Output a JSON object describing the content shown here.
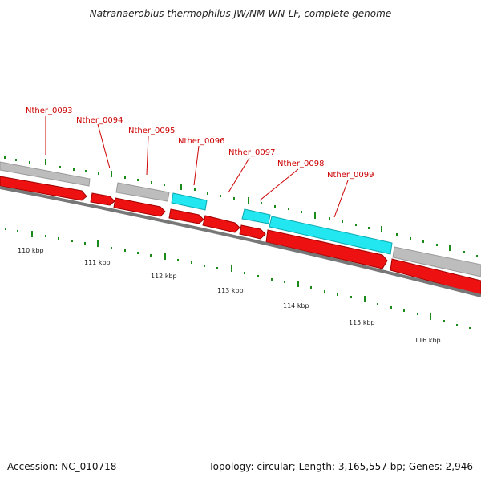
{
  "title": "Natranaerobius thermophilus JW/NM-WN-LF, complete genome",
  "accession": "Accession: NC_010718",
  "topology": "Topology: circular; Length: 3,165,557 bp; Genes: 2,946",
  "colors": {
    "gene_label": "#cc0000",
    "cds_red": "#ee1111",
    "cds_red_dark": "#a00000",
    "cyan": "#22e6f0",
    "gray_bar": "#bdbdbd",
    "backbone": "#777777",
    "tick_green": "#1a8a1a"
  },
  "gene_labels": [
    {
      "name": "Nther_0093"
    },
    {
      "name": "Nther_0094"
    },
    {
      "name": "Nther_0095"
    },
    {
      "name": "Nther_0096"
    },
    {
      "name": "Nther_0097"
    },
    {
      "name": "Nther_0098"
    },
    {
      "name": "Nther_0099"
    }
  ],
  "scale_labels": [
    "110 kbp",
    "111 kbp",
    "112 kbp",
    "113 kbp",
    "114 kbp",
    "115 kbp",
    "116 kbp"
  ]
}
